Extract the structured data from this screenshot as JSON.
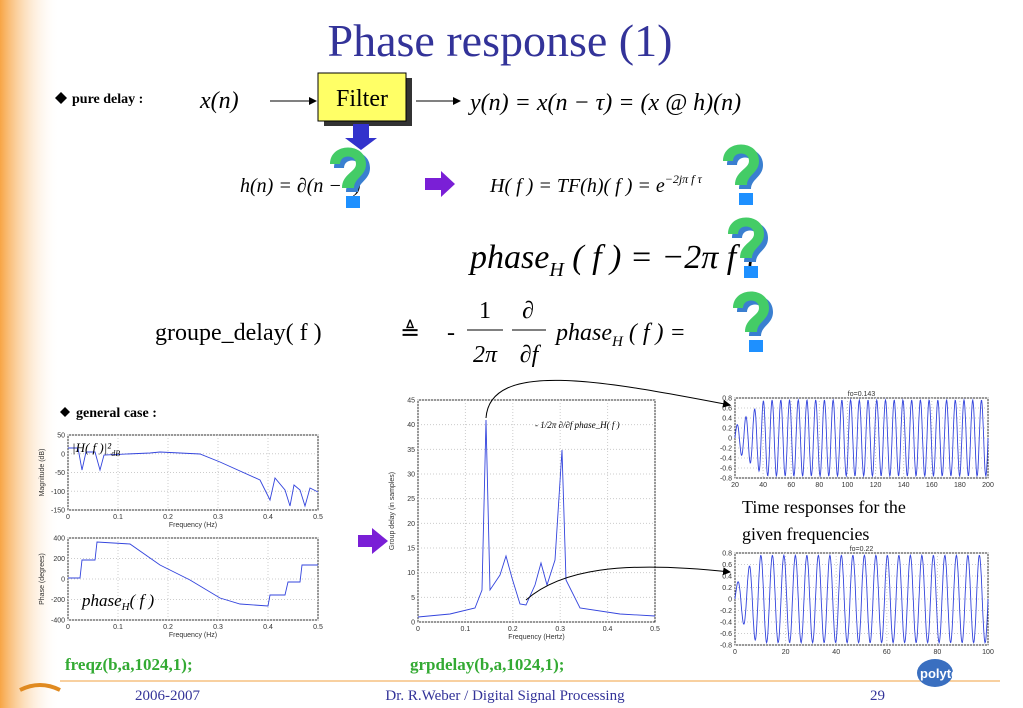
{
  "title": "Phase response (1)",
  "pure_delay": {
    "label": "pure delay :",
    "input": "x(n)",
    "filter": "Filter",
    "output": "y(n) = x(n − τ) = (x @ h)(n)"
  },
  "equations": {
    "impulse": "h(n) = ∂(n − τ)",
    "transfer": "H( f ) = TF(h)( f ) = e",
    "transfer_exp": "−2jπ f τ",
    "phase": {
      "name": "phase",
      "sub": "H",
      "rest": " ( f ) = −2π f τ"
    },
    "group_delay": {
      "name": "groupe_delay( f )",
      "defined": "≜",
      "minus": "-",
      "num": "1",
      "den": "2π",
      "dnum": "∂",
      "dden": "∂f",
      "phase": "phase",
      "sub": "H",
      "rest": " ( f ) ="
    }
  },
  "general_case": {
    "label": "general case :"
  },
  "plots": {
    "magnitude": {
      "annotation": "|H( f )|²",
      "annotation_sub": "dB",
      "ylabel": "Magnitude (dB)",
      "xlabel": "Frequency (Hz)",
      "yticks": [
        50,
        0,
        -50,
        -100,
        -150
      ],
      "xticks": [
        0,
        0.1,
        0.2,
        0.3,
        0.4,
        0.5
      ]
    },
    "phase": {
      "annotation": "phase",
      "annotation_sub": "H",
      "annotation_rest": "( f )",
      "ylabel": "Phase (degrees)",
      "xlabel": "Frequency (Hz)",
      "yticks": [
        400,
        200,
        0,
        -200,
        -400
      ],
      "xticks": [
        0,
        0.1,
        0.2,
        0.3,
        0.4,
        0.5
      ]
    },
    "group_delay": {
      "ylabel": "Group delay (in samples)",
      "xlabel": "Frequency (Hertz)",
      "yticks": [
        45,
        40,
        35,
        30,
        25,
        20,
        15,
        10,
        5,
        0
      ],
      "xticks": [
        0,
        0.1,
        0.2,
        0.3,
        0.4,
        0.5
      ],
      "annotation": "- 1/2π ∂/∂f phase_H( f )"
    },
    "time1": {
      "title": "fo=0.143",
      "yticks": [
        0.8,
        0.6,
        0.4,
        0.2,
        0,
        -0.2,
        -0.4,
        -0.6,
        -0.8
      ],
      "xticks": [
        20,
        40,
        60,
        80,
        100,
        120,
        140,
        160,
        180,
        200
      ]
    },
    "time2": {
      "title": "fo=0.22",
      "yticks": [
        0.8,
        0.6,
        0.4,
        0.2,
        0,
        -0.2,
        -0.4,
        -0.6,
        -0.8
      ],
      "xticks": [
        0,
        20,
        40,
        60,
        80,
        100
      ]
    }
  },
  "time_note": [
    "Time responses for the",
    "given frequencies"
  ],
  "code": {
    "freqz": "freqz(b,a,1024,1);",
    "grpdelay": "grpdelay(b,a,1024,1);"
  },
  "footer": {
    "year": "2006-2007",
    "author": "Dr. R.Weber / Digital Signal Processing",
    "page": "29",
    "logo": "polytechnique"
  }
}
